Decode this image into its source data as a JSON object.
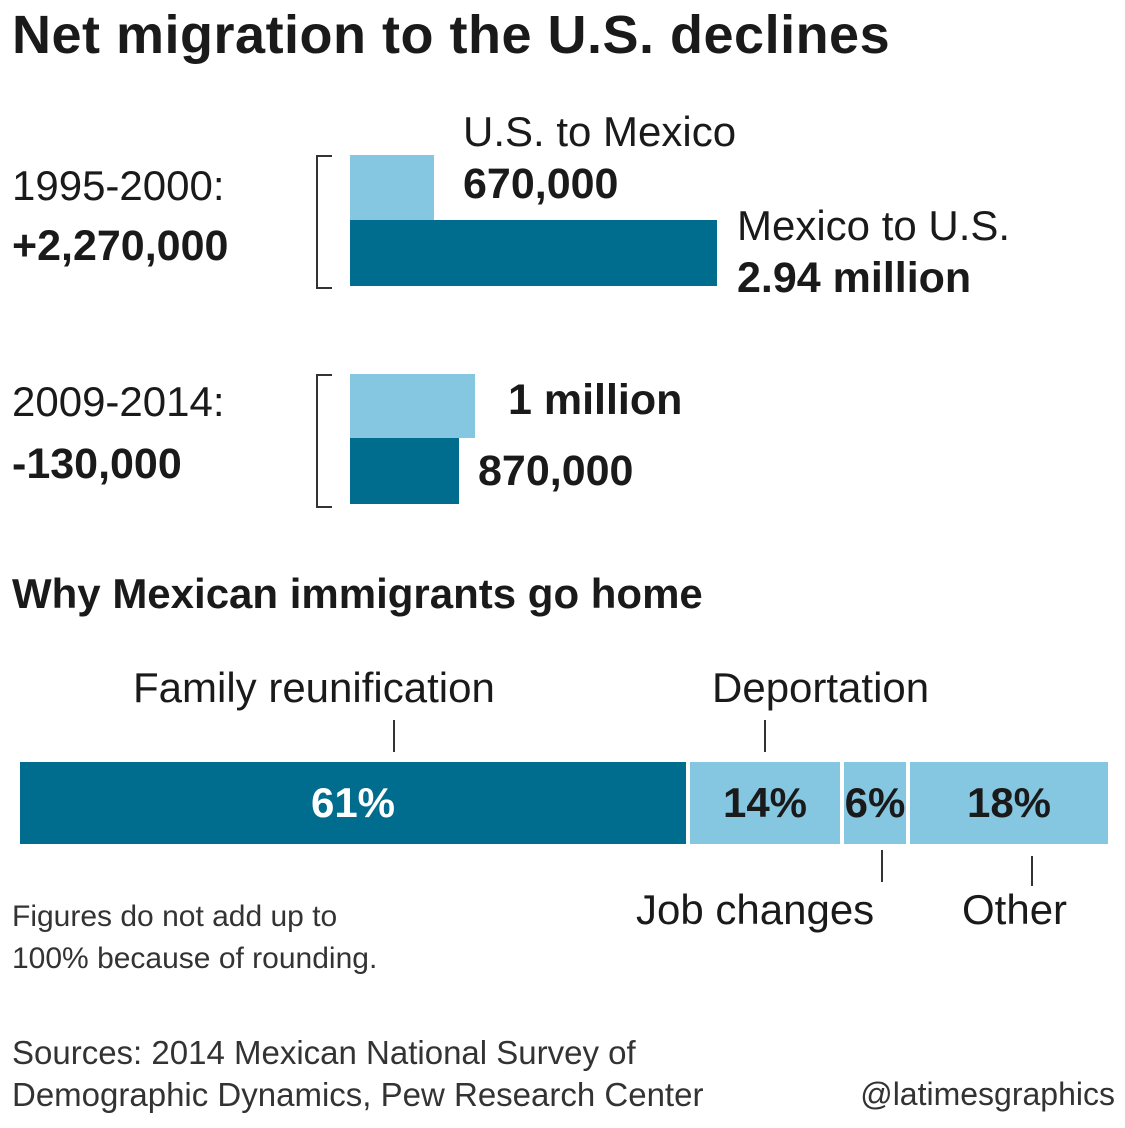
{
  "title": "Net migration to the U.S. declines",
  "chart_data": [
    {
      "type": "bar",
      "orientation": "horizontal",
      "title": "Net migration to the U.S. declines",
      "categories": [
        "1995-2000:",
        "2009-2014:"
      ],
      "net_labels": [
        "+2,270,000",
        "-130,000"
      ],
      "series": [
        {
          "name": "U.S. to Mexico",
          "values": [
            670000,
            1000000
          ],
          "value_labels": [
            "670,000",
            "1 million"
          ],
          "color": "#85c6e0"
        },
        {
          "name": "Mexico to U.S.",
          "values": [
            2940000,
            870000
          ],
          "value_labels": [
            "2.94 million",
            "870,000"
          ],
          "color": "#006c8e"
        }
      ],
      "xlim": [
        0,
        2940000
      ],
      "grid": false
    },
    {
      "type": "bar",
      "orientation": "stacked-horizontal",
      "title": "Why Mexican immigrants go home",
      "categories": [
        "Family reunification",
        "Deportation",
        "Job changes",
        "Other"
      ],
      "values": [
        61,
        14,
        6,
        18
      ],
      "value_labels": [
        "61%",
        "14%",
        "6%",
        "18%"
      ],
      "colors": [
        "#006c8e",
        "#85c6e0",
        "#85c6e0",
        "#85c6e0"
      ],
      "label_colors": [
        "#ffffff",
        "#1a1a1a",
        "#1a1a1a",
        "#1a1a1a"
      ],
      "note": "Figures do not add up to\n100% because of rounding."
    }
  ],
  "sources": "Sources: 2014 Mexican National Survey of\nDemographic Dynamics, Pew Research Center",
  "credit": "@latimesgraphics"
}
